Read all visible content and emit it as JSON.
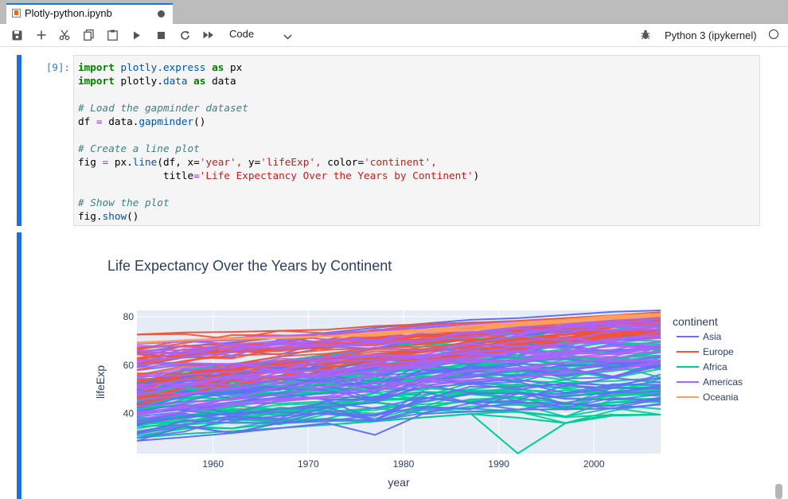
{
  "tab": {
    "title": "Plotly-python.ipynb"
  },
  "toolbar": {
    "cell_type": "Code",
    "kernel": "Python 3 (ipykernel)"
  },
  "cell": {
    "prompt": "[9]:",
    "code_lines": [
      "import plotly.express as px",
      "import plotly.data as data",
      "",
      "# Load the gapminder dataset",
      "df = data.gapminder()",
      "",
      "# Create a line plot",
      "fig = px.line(df, x='year', y='lifeExp', color='continent',",
      "              title='Life Expectancy Over the Years by Continent')",
      "",
      "# Show the plot",
      "fig.show()"
    ]
  },
  "colors": {
    "asia": "#636efa",
    "europe": "#ef553b",
    "africa": "#00cc96",
    "americas": "#ab63fa",
    "oceania": "#ffa15a",
    "plot_bg": "#e5ecf6"
  },
  "chart_data": {
    "type": "line",
    "title": "Life Expectancy Over the Years by Continent",
    "xlabel": "year",
    "ylabel": "lifeExp",
    "xlim": [
      1952,
      2007
    ],
    "ylim": [
      23.5,
      82.6
    ],
    "x_ticks": [
      "1960",
      "1970",
      "1980",
      "1990",
      "2000"
    ],
    "y_ticks": [
      "40",
      "60",
      "80"
    ],
    "legend_title": "continent",
    "legend_position": "right",
    "x": [
      1952,
      1957,
      1962,
      1967,
      1972,
      1977,
      1982,
      1987,
      1992,
      1997,
      2002,
      2007
    ],
    "series": [
      {
        "name": "Asia",
        "color": "#636efa",
        "ranges": [
          [
            28.8,
            65.4
          ],
          [
            30.3,
            67.8
          ],
          [
            32.0,
            69.4
          ],
          [
            34.0,
            71.4
          ],
          [
            36.1,
            73.4
          ],
          [
            31.2,
            75.4
          ],
          [
            39.9,
            77.1
          ],
          [
            40.8,
            78.7
          ],
          [
            41.7,
            79.4
          ],
          [
            41.8,
            80.7
          ],
          [
            42.1,
            82.0
          ],
          [
            43.8,
            82.6
          ]
        ],
        "outliers": []
      },
      {
        "name": "Europe",
        "color": "#ef553b",
        "ranges": [
          [
            43.6,
            72.7
          ],
          [
            48.1,
            73.5
          ],
          [
            52.1,
            73.7
          ],
          [
            54.3,
            74.2
          ],
          [
            57.0,
            74.7
          ],
          [
            59.5,
            76.1
          ],
          [
            61.0,
            76.9
          ],
          [
            63.1,
            77.5
          ],
          [
            66.1,
            78.3
          ],
          [
            68.8,
            79.4
          ],
          [
            70.8,
            80.6
          ],
          [
            71.8,
            81.8
          ]
        ],
        "outliers": []
      },
      {
        "name": "Africa",
        "color": "#00cc96",
        "ranges": [
          [
            30.0,
            52.7
          ],
          [
            31.6,
            58.1
          ],
          [
            32.8,
            60.2
          ],
          [
            34.1,
            61.6
          ],
          [
            35.4,
            64.3
          ],
          [
            36.8,
            67.1
          ],
          [
            38.4,
            69.9
          ],
          [
            39.9,
            71.9
          ],
          [
            38.3,
            73.6
          ],
          [
            36.1,
            74.8
          ],
          [
            39.2,
            75.7
          ],
          [
            39.6,
            76.4
          ]
        ],
        "outliers": [
          [
            1992,
            23.6
          ],
          [
            1997,
            36.1
          ]
        ]
      },
      {
        "name": "Americas",
        "color": "#ab63fa",
        "ranges": [
          [
            37.6,
            68.8
          ],
          [
            40.7,
            70.0
          ],
          [
            43.4,
            71.3
          ],
          [
            45.0,
            72.1
          ],
          [
            46.7,
            72.9
          ],
          [
            49.9,
            74.2
          ],
          [
            51.5,
            75.8
          ],
          [
            53.6,
            76.9
          ],
          [
            55.1,
            77.9
          ],
          [
            56.7,
            78.6
          ],
          [
            58.1,
            79.8
          ],
          [
            60.9,
            80.7
          ]
        ],
        "outliers": []
      },
      {
        "name": "Oceania",
        "color": "#ffa15a",
        "ranges": [
          [
            69.1,
            69.4
          ],
          [
            70.3,
            70.3
          ],
          [
            70.9,
            71.2
          ],
          [
            71.1,
            71.5
          ],
          [
            71.9,
            71.9
          ],
          [
            72.2,
            73.5
          ],
          [
            73.8,
            74.7
          ],
          [
            74.3,
            76.3
          ],
          [
            76.3,
            77.6
          ],
          [
            77.6,
            78.8
          ],
          [
            79.1,
            80.4
          ],
          [
            80.2,
            81.2
          ]
        ],
        "outliers": []
      }
    ]
  }
}
